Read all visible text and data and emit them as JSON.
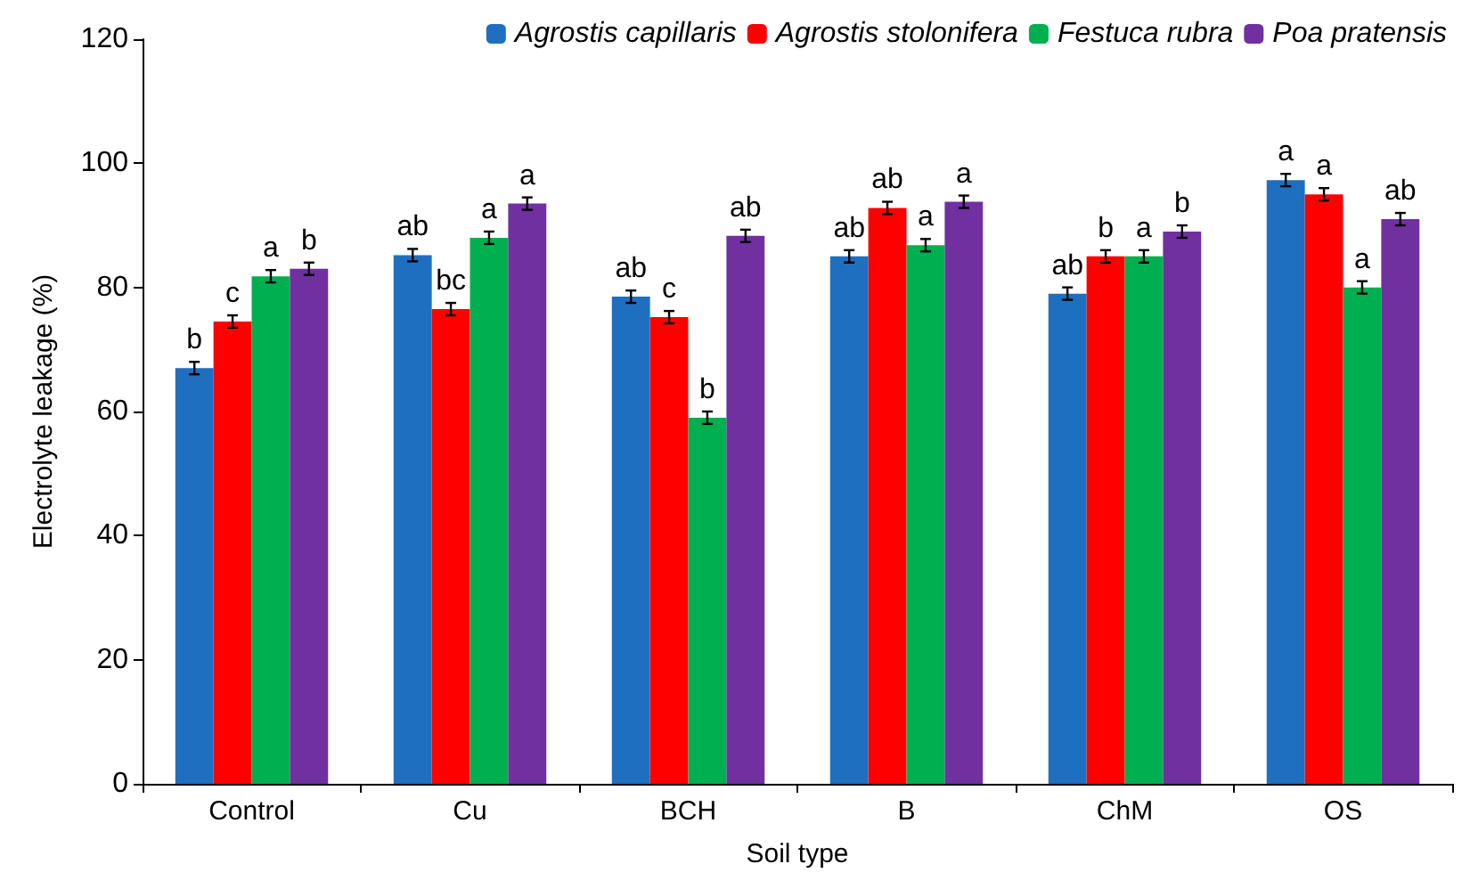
{
  "chart_data": {
    "type": "bar",
    "xlabel": "Soil type",
    "ylabel": "Electrolyte leakage (%)",
    "categories": [
      "Control",
      "Cu",
      "BCH",
      "B",
      "ChM",
      "OS"
    ],
    "series": [
      {
        "name": "Agrostis capillaris",
        "color": "#1f6fc0",
        "values": [
          67,
          85.2,
          78.5,
          85,
          79,
          97.3
        ],
        "errors": [
          1,
          1,
          1,
          1,
          1,
          1
        ],
        "value_labels": [
          "b",
          "ab",
          "ab",
          "ab",
          "ab",
          "a"
        ]
      },
      {
        "name": "Agrostis stolonifera",
        "color": "#ff0000",
        "values": [
          74.5,
          76.5,
          75.2,
          92.8,
          85,
          95
        ],
        "errors": [
          1,
          1,
          1,
          1,
          1,
          1
        ],
        "value_labels": [
          "c",
          "bc",
          "c",
          "ab",
          "b",
          "a"
        ]
      },
      {
        "name": "Festuca rubra",
        "color": "#00b050",
        "values": [
          81.8,
          88,
          59,
          86.8,
          85,
          80
        ],
        "errors": [
          1,
          1,
          1,
          1,
          1,
          1
        ],
        "value_labels": [
          "a",
          "a",
          "b",
          "a",
          "a",
          "a"
        ]
      },
      {
        "name": "Poa pratensis",
        "color": "#7030a0",
        "values": [
          83,
          93.5,
          88.3,
          93.8,
          89,
          91
        ],
        "errors": [
          1,
          1,
          1,
          1,
          1,
          1
        ],
        "value_labels": [
          "b",
          "a",
          "ab",
          "a",
          "b",
          "ab"
        ]
      }
    ],
    "ylim": [
      0,
      120
    ],
    "yticks": [
      0,
      20,
      40,
      60,
      80,
      100,
      120
    ],
    "grid": false,
    "legend": "top right"
  }
}
